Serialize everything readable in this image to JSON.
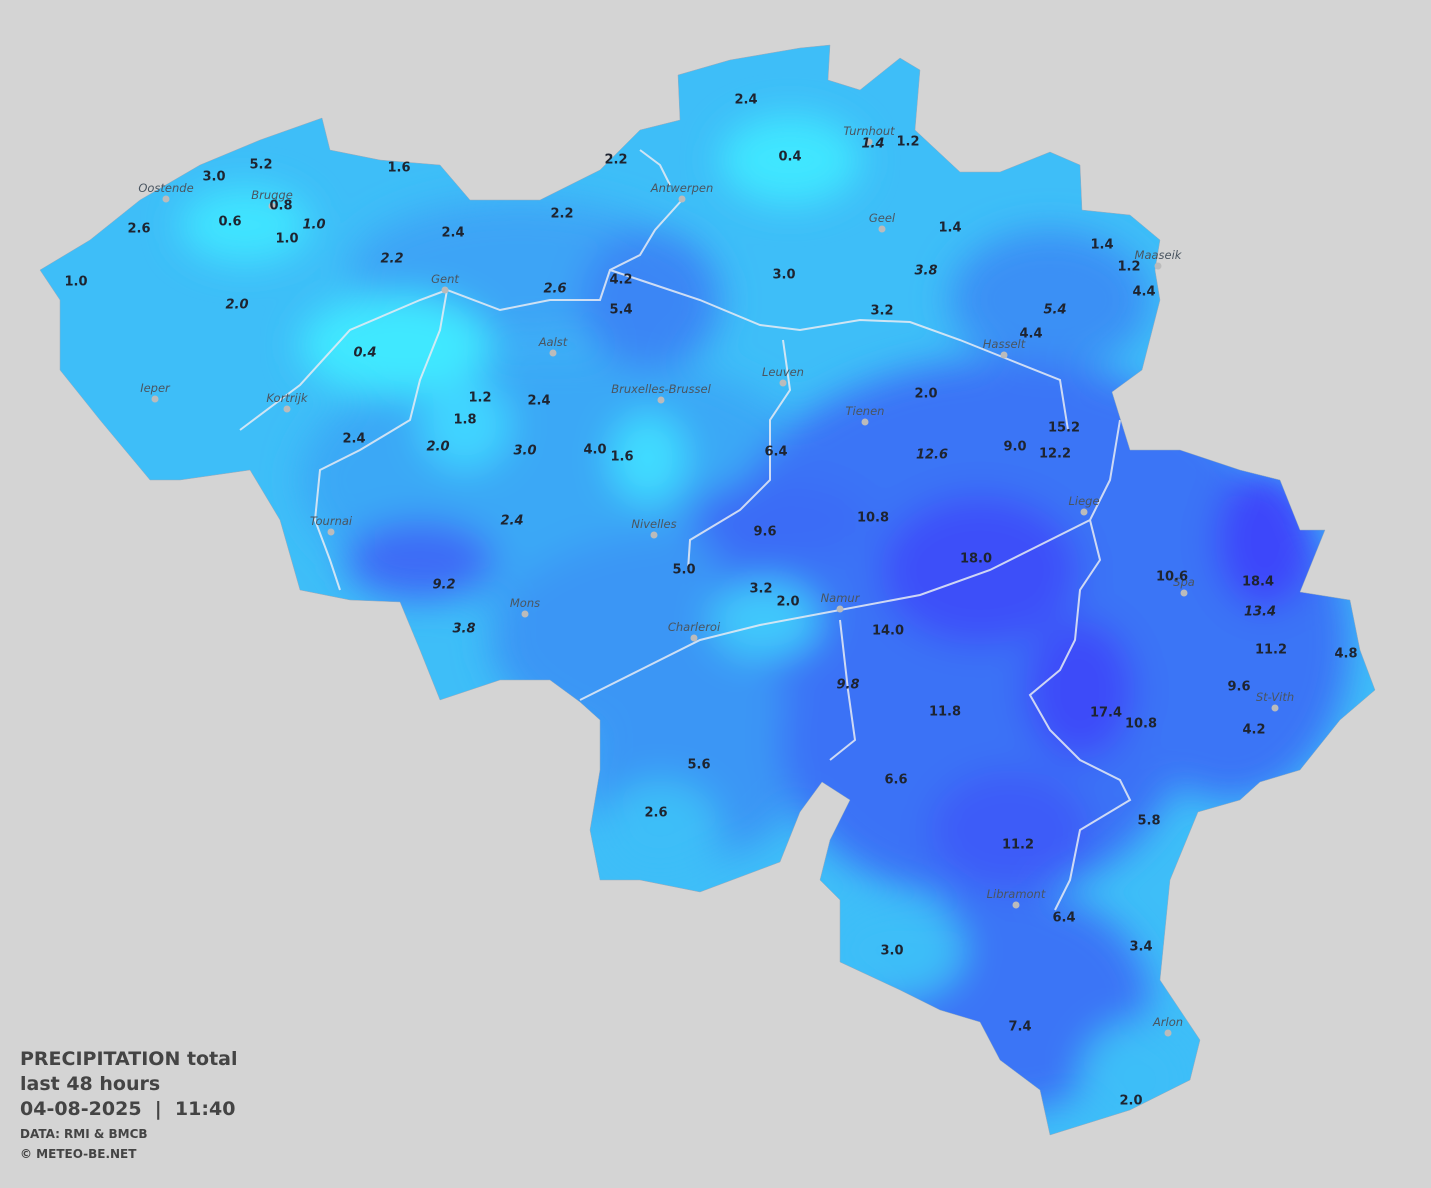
{
  "legend": {
    "title": "PRECIPITATION total",
    "period": "last 48 hours",
    "datetime": "04-08-2025  |  11:40",
    "source": "DATA: RMI & BMCB",
    "copyright": "© METEO-BE.NET"
  },
  "stations": [
    "5.2",
    "3.0",
    "0.8",
    "0.6",
    "1.0",
    "1.0",
    "2.6",
    "1.0",
    "2.0",
    "1.6",
    "2.4",
    "2.2",
    "2.2",
    "2.2",
    "2.4",
    "0.4",
    "1.4",
    "1.2",
    "1.4",
    "1.4",
    "1.2",
    "4.4",
    "3.8",
    "3.0",
    "4.2",
    "2.6",
    "5.4",
    "3.2",
    "5.4",
    "4.4",
    "0.4",
    "1.2",
    "1.8",
    "2.4",
    "2.0",
    "15.2",
    "2.4",
    "2.0",
    "3.0",
    "4.0",
    "1.6",
    "6.4",
    "12.6",
    "9.0",
    "12.2",
    "2.4",
    "10.8",
    "9.6",
    "18.0",
    "10.6",
    "18.4",
    "13.4",
    "9.2",
    "5.0",
    "3.2",
    "2.0",
    "3.8",
    "14.0",
    "11.2",
    "4.8",
    "9.8",
    "9.6",
    "11.8",
    "17.4",
    "10.8",
    "4.2",
    "5.6",
    "6.6",
    "2.6",
    "5.8",
    "11.2",
    "6.4",
    "3.0",
    "3.4",
    "7.4",
    "2.0"
  ],
  "cities": [
    "Oostende",
    "Brugge",
    "Antwerpen",
    "Turnhout",
    "Geel",
    "Maaseik",
    "Gent",
    "Aalst",
    "Hasselt",
    "Leuven",
    "Ieper",
    "Kortrijk",
    "Bruxelles-Brussel",
    "Tienen",
    "Liege",
    "Tournai",
    "Nivelles",
    "Spa",
    "Namur",
    "Mons",
    "Charleroi",
    "St-Vith",
    "Libramont",
    "Arlon"
  ]
}
